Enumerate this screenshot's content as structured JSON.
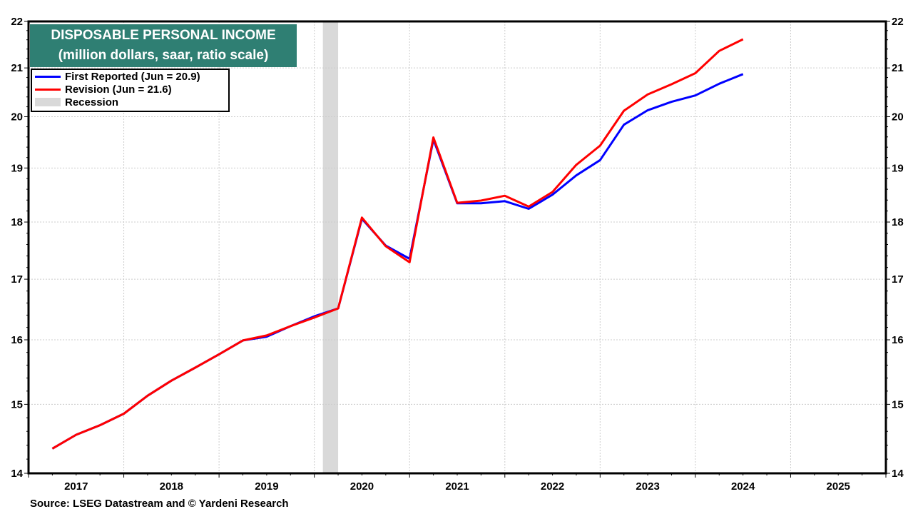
{
  "chart_data": {
    "type": "line",
    "title": "DISPOSABLE PERSONAL INCOME",
    "subtitle": "(million dollars, saar, ratio scale)",
    "source": "Source: LSEG Datastream and © Yardeni Research",
    "y_scale": "log",
    "ylim": [
      14,
      22
    ],
    "y_ticks": [
      14,
      15,
      16,
      17,
      18,
      19,
      20,
      21,
      22
    ],
    "xlim": [
      2017,
      2026
    ],
    "x_tick_labels": [
      "2017",
      "2018",
      "2019",
      "2020",
      "2021",
      "2022",
      "2023",
      "2024",
      "2025"
    ],
    "grid": true,
    "legend_placement": "top-left",
    "x": [
      2017.25,
      2017.5,
      2017.75,
      2018.0,
      2018.25,
      2018.5,
      2018.75,
      2019.0,
      2019.25,
      2019.5,
      2019.75,
      2020.0,
      2020.25,
      2020.5,
      2020.75,
      2021.0,
      2021.25,
      2021.5,
      2021.75,
      2022.0,
      2022.25,
      2022.5,
      2022.75,
      2023.0,
      2023.25,
      2023.5,
      2023.75,
      2024.0,
      2024.25,
      2024.5
    ],
    "series": [
      {
        "name": "First Reported (Jun = 20.9)",
        "color": "#0000ff",
        "values": [
          14.35,
          14.55,
          14.69,
          14.86,
          15.13,
          15.36,
          15.56,
          15.77,
          15.99,
          16.05,
          16.22,
          16.38,
          16.51,
          18.06,
          17.58,
          17.35,
          19.55,
          18.34,
          18.34,
          18.38,
          18.24,
          18.5,
          18.86,
          19.15,
          19.84,
          20.13,
          20.3,
          20.43,
          20.67,
          20.87
        ]
      },
      {
        "name": "Revision (Jun = 21.6)",
        "color": "#ff0000",
        "values": [
          14.35,
          14.55,
          14.69,
          14.86,
          15.13,
          15.36,
          15.56,
          15.77,
          15.99,
          16.07,
          16.22,
          16.36,
          16.51,
          18.08,
          17.57,
          17.29,
          19.59,
          18.35,
          18.39,
          18.48,
          18.28,
          18.55,
          19.06,
          19.43,
          20.12,
          20.45,
          20.66,
          20.89,
          21.36,
          21.61
        ]
      }
    ],
    "recessions": [
      {
        "name": "Recession",
        "start": 2020.09,
        "end": 2020.25,
        "color": "#d9d9d9"
      }
    ]
  }
}
